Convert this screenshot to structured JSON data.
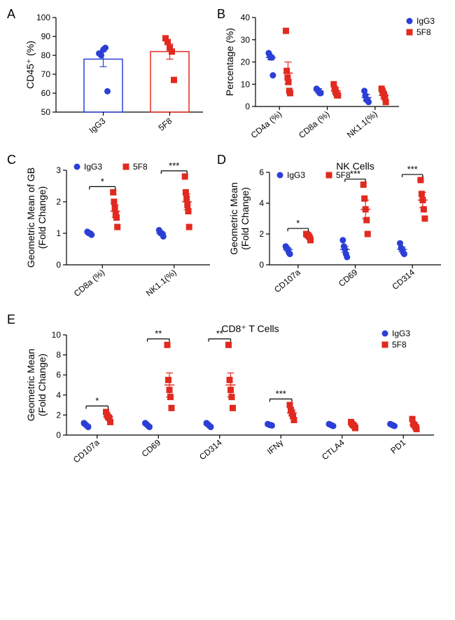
{
  "colors": {
    "igg3": "#2b3fd6",
    "f58": "#e12a1f",
    "axis": "#000000",
    "bg": "#ffffff"
  },
  "legend": {
    "igg3": "IgG3",
    "f58": "5F8"
  },
  "markers": {
    "igg3": "circle",
    "f58": "square",
    "size": 4.5,
    "err_cap": 5
  },
  "panels": {
    "A": {
      "label": "A",
      "type": "bar_scatter",
      "y_title": "CD45⁺ (%)",
      "ylim": [
        50,
        100
      ],
      "ytick_step": 10,
      "categories": [
        "IgG3",
        "5F8"
      ],
      "bars": [
        {
          "name": "IgG3",
          "mean": 78,
          "sem": 4,
          "color": "#2b3fd6",
          "points": [
            81,
            80,
            83,
            84,
            61
          ]
        },
        {
          "name": "5F8",
          "mean": 82,
          "sem": 4,
          "color": "#e12a1f",
          "points": [
            89,
            87,
            84,
            82,
            67
          ]
        }
      ]
    },
    "B": {
      "label": "B",
      "type": "grouped_scatter",
      "y_title": "Percentage (%)",
      "ylim": [
        0,
        40
      ],
      "ytick_step": 10,
      "categories": [
        "CD4a (%)",
        "CD8a (%)",
        "NK1.1(%)"
      ],
      "series": [
        {
          "name": "IgG3",
          "color": "#2b3fd6",
          "means": [
            22,
            7,
            4
          ],
          "sems": [
            1,
            1,
            1.5
          ],
          "points": [
            [
              24,
              23,
              22,
              22,
              14
            ],
            [
              8,
              7.5,
              7,
              6,
              6
            ],
            [
              7,
              5,
              3,
              3,
              2
            ]
          ]
        },
        {
          "name": "5F8",
          "color": "#e12a1f",
          "means": [
            15,
            7,
            5
          ],
          "sems": [
            5,
            1.5,
            1.5
          ],
          "points": [
            [
              34,
              16,
              13,
              11,
              7,
              6
            ],
            [
              10,
              8,
              7,
              6,
              5,
              5
            ],
            [
              8,
              7,
              6,
              5,
              4,
              2
            ]
          ]
        }
      ]
    },
    "C": {
      "label": "C",
      "type": "grouped_scatter",
      "y_title": "Geometric Mean of GB\n(Fold Change)",
      "ylim": [
        0,
        3
      ],
      "ytick_step": 1,
      "categories": [
        "CD8a (%)",
        "NK1.1(%)"
      ],
      "sigs": [
        "*",
        "***"
      ],
      "series": [
        {
          "name": "IgG3",
          "color": "#2b3fd6",
          "means": [
            1.0,
            1.0
          ],
          "sems": [
            0.05,
            0.05
          ],
          "points": [
            [
              1.05,
              1.02,
              1.0,
              1.0,
              0.98,
              0.95
            ],
            [
              1.1,
              1.05,
              1.0,
              1.0,
              0.98,
              0.9
            ]
          ]
        },
        {
          "name": "5F8",
          "color": "#e12a1f",
          "means": [
            1.7,
            2.0
          ],
          "sems": [
            0.2,
            0.25
          ],
          "points": [
            [
              2.3,
              2.0,
              1.8,
              1.6,
              1.5,
              1.2
            ],
            [
              2.8,
              2.3,
              2.1,
              1.9,
              1.7,
              1.2
            ]
          ]
        }
      ]
    },
    "D": {
      "label": "D",
      "type": "grouped_scatter",
      "title": "NK Cells",
      "y_title": "Geometric Mean\n(Fold Change)",
      "ylim": [
        0,
        6
      ],
      "ytick_step": 2,
      "categories": [
        "CD107a",
        "CD69",
        "CD314"
      ],
      "sigs": [
        "*",
        "***",
        "***"
      ],
      "series": [
        {
          "name": "IgG3",
          "color": "#2b3fd6",
          "means": [
            1.0,
            1.0,
            1.0
          ],
          "sems": [
            0.1,
            0.2,
            0.15
          ],
          "points": [
            [
              1.2,
              1.1,
              1.0,
              0.8,
              0.7
            ],
            [
              1.6,
              1.2,
              1.0,
              0.7,
              0.5
            ],
            [
              1.4,
              1.1,
              1.0,
              0.8,
              0.7
            ]
          ]
        },
        {
          "name": "5F8",
          "color": "#e12a1f",
          "means": [
            1.85,
            3.6,
            4.2
          ],
          "sems": [
            0.1,
            0.6,
            0.5
          ],
          "points": [
            [
              2.0,
              1.95,
              1.9,
              1.8,
              1.6
            ],
            [
              5.2,
              4.3,
              3.6,
              2.9,
              2.0
            ],
            [
              5.5,
              4.6,
              4.2,
              3.6,
              3.0
            ]
          ]
        }
      ]
    },
    "E": {
      "label": "E",
      "type": "grouped_scatter",
      "title": "CD8⁺ T Cells",
      "y_title": "Geometric Mean\n(Fold Change)",
      "ylim": [
        0,
        10
      ],
      "ytick_step": 2,
      "categories": [
        "CD107a",
        "CD69",
        "CD314",
        "IFNγ",
        "CTLA4",
        "PD1"
      ],
      "sigs": [
        "*",
        "**",
        "**",
        "***",
        "",
        ""
      ],
      "series": [
        {
          "name": "IgG3",
          "color": "#2b3fd6",
          "means": [
            1.0,
            1.0,
            1.0,
            1.0,
            1.0,
            1.0
          ],
          "sems": [
            0.1,
            0.1,
            0.1,
            0.05,
            0.05,
            0.05
          ],
          "points": [
            [
              1.2,
              1.1,
              1.0,
              0.9,
              0.8
            ],
            [
              1.2,
              1.1,
              1.0,
              0.9,
              0.8
            ],
            [
              1.2,
              1.1,
              1.0,
              0.9,
              0.8
            ],
            [
              1.1,
              1.05,
              1.0,
              1.0,
              0.95
            ],
            [
              1.1,
              1.05,
              1.0,
              0.95,
              0.9
            ],
            [
              1.1,
              1.05,
              1.0,
              0.95,
              0.9
            ]
          ]
        },
        {
          "name": "5F8",
          "color": "#e12a1f",
          "means": [
            1.8,
            5.0,
            5.0,
            2.2,
            1.0,
            1.0
          ],
          "sems": [
            0.2,
            1.2,
            1.2,
            0.3,
            0.15,
            0.2
          ],
          "points": [
            [
              2.3,
              2.0,
              1.8,
              1.7,
              1.3
            ],
            [
              9.0,
              5.5,
              4.5,
              3.8,
              2.7
            ],
            [
              9.0,
              5.5,
              4.5,
              3.8,
              2.7
            ],
            [
              3.0,
              2.5,
              2.2,
              1.9,
              1.5
            ],
            [
              1.3,
              1.1,
              1.0,
              0.9,
              0.7
            ],
            [
              1.6,
              1.1,
              1.0,
              0.8,
              0.6
            ]
          ]
        }
      ]
    }
  }
}
